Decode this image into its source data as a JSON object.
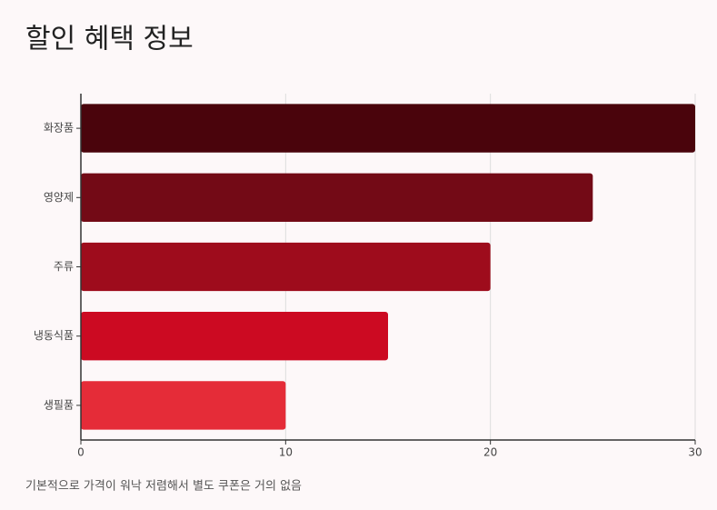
{
  "chart_data": {
    "type": "bar",
    "orientation": "horizontal",
    "title": "할인 혜택 정보",
    "categories": [
      "화장품",
      "영양제",
      "주류",
      "냉동식품",
      "생필품"
    ],
    "values": [
      30,
      25,
      20,
      15,
      10
    ],
    "colors": [
      "#4a040c",
      "#730a16",
      "#9e0c1c",
      "#cc0a22",
      "#e52c38"
    ],
    "xlim": [
      0,
      30
    ],
    "xticks": [
      0,
      10,
      20,
      30
    ],
    "grid": true,
    "caption": "기본적으로 가격이 워낙 저렴해서 별도 쿠폰은 거의 없음"
  }
}
